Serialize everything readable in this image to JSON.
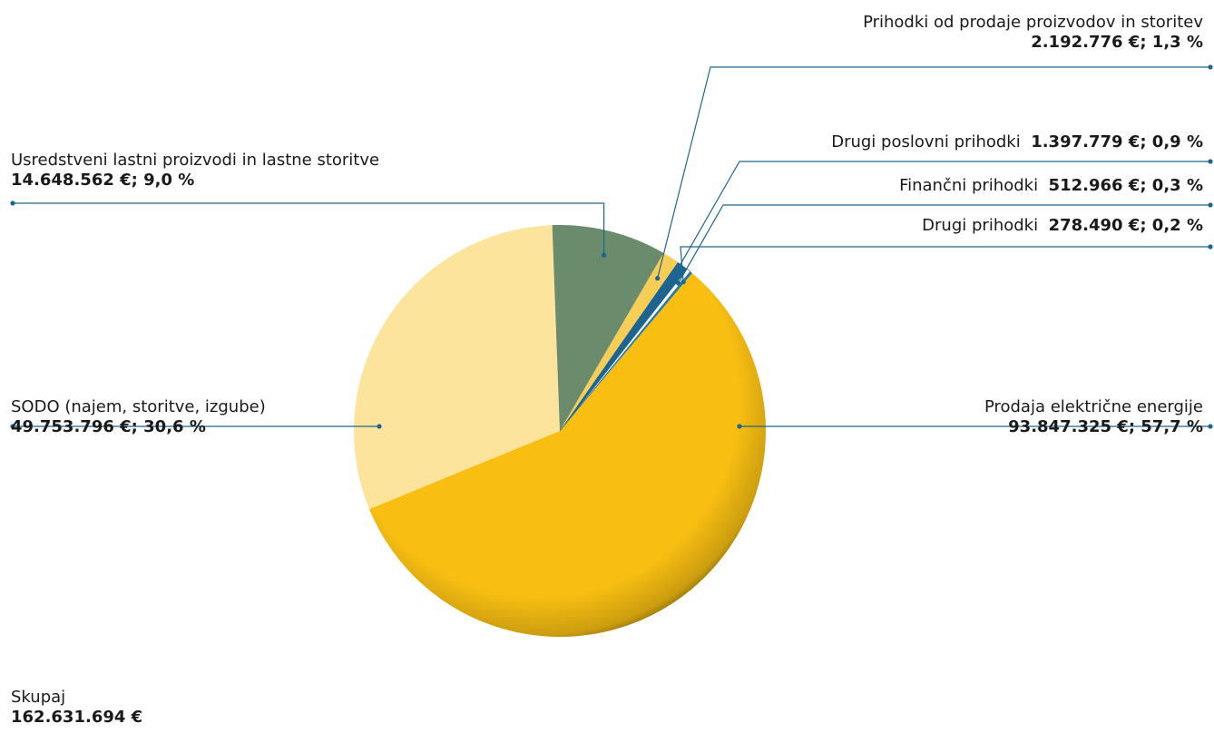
{
  "chart_data": {
    "type": "pie",
    "slices": [
      {
        "name": "Prodaja električne energije",
        "amount": "93.847.325 €",
        "percent": "57,7 %",
        "value": 57.7,
        "color": "#f8bf12"
      },
      {
        "name": "SODO (najem, storitve, izgube)",
        "amount": "49.753.796 €",
        "percent": "30,6 %",
        "value": 30.6,
        "color": "#fde49d"
      },
      {
        "name": "Usredstveni lastni proizvodi in lastne storitve",
        "amount": "14.648.562 €",
        "percent": "9,0 %",
        "value": 9.0,
        "color": "#6a8c6c"
      },
      {
        "name": "Prihodki od prodaje proizvodov in storitev",
        "amount": "2.192.776 €",
        "percent": "1,3 %",
        "value": 1.3,
        "color": "#f6cd55"
      },
      {
        "name": "Drugi poslovni prihodki",
        "amount": "1.397.779 €",
        "percent": "0,9 %",
        "value": 0.9,
        "color": "#1d6590"
      },
      {
        "name": "Finančni prihodki",
        "amount": "512.966 €",
        "percent": "0,3 %",
        "value": 0.3,
        "color": "#ffffff"
      },
      {
        "name": "Drugi prihodki",
        "amount": "278.490 €",
        "percent": "0,2 %",
        "value": 0.2,
        "color": "#2a7aa8"
      }
    ],
    "total": {
      "label": "Skupaj",
      "value": "162.631.694 €"
    }
  },
  "colors": {
    "leader": "#1d6590",
    "dot": "#1d6590"
  }
}
